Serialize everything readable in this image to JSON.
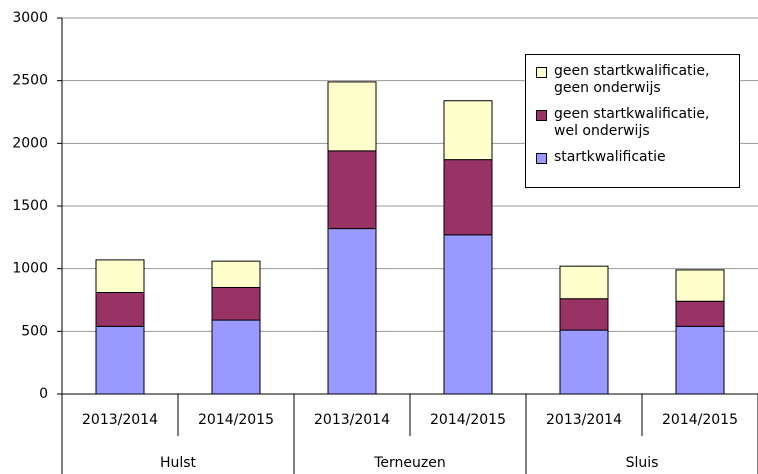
{
  "chart_data": {
    "type": "stacked_bar",
    "categories": [
      "2013/2014",
      "2014/2015",
      "2013/2014",
      "2014/2015",
      "2013/2014",
      "2014/2015"
    ],
    "groups": [
      "Hulst",
      "Terneuzen",
      "Sluis"
    ],
    "series": [
      {
        "name": "startkwalificatie",
        "color": "#9999ff",
        "values": [
          540,
          590,
          1320,
          1270,
          510,
          540
        ]
      },
      {
        "name": "geen startkwalificatie, wel onderwijs",
        "color": "#993366",
        "values": [
          270,
          260,
          620,
          600,
          250,
          200
        ]
      },
      {
        "name": "geen startkwalificatie, geen onderwijs",
        "color": "#ffffcc",
        "values": [
          260,
          210,
          550,
          470,
          260,
          250
        ]
      }
    ],
    "ylim": [
      0,
      3000
    ],
    "yticks": [
      0,
      500,
      1000,
      1500,
      2000,
      2500,
      3000
    ],
    "grid": true,
    "legend": "upper right"
  }
}
